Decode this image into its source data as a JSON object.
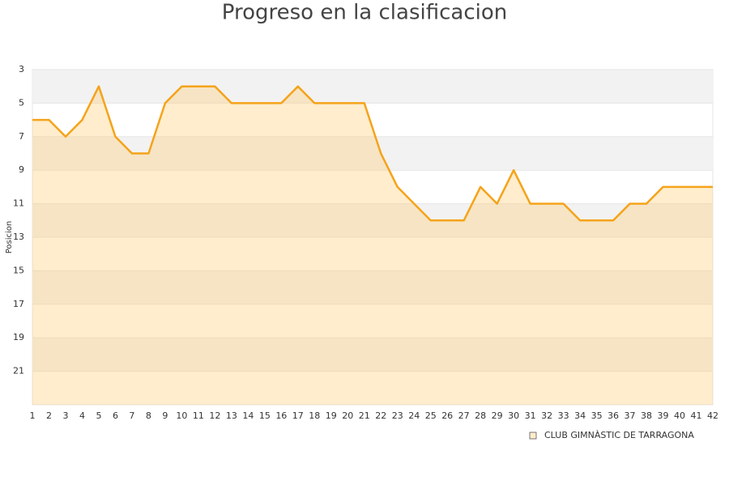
{
  "chart_data": {
    "type": "area",
    "title": "Progreso en la clasificacion",
    "y_label": "Posicion",
    "x": [
      1,
      2,
      3,
      4,
      5,
      6,
      7,
      8,
      9,
      10,
      11,
      12,
      13,
      14,
      15,
      16,
      17,
      18,
      19,
      20,
      21,
      22,
      23,
      24,
      25,
      26,
      27,
      28,
      29,
      30,
      31,
      32,
      33,
      34,
      35,
      36,
      37,
      38,
      39,
      40,
      41,
      42
    ],
    "xlim": [
      1,
      42
    ],
    "series": [
      {
        "name": "CLUB GIMNÀSTIC DE TARRAGONA",
        "color": "#f5a31a",
        "values": [
          6,
          6,
          7,
          6,
          4,
          7,
          8,
          8,
          5,
          4,
          4,
          4,
          5,
          5,
          5,
          5,
          4,
          5,
          5,
          5,
          5,
          8,
          10,
          11,
          12,
          12,
          12,
          10,
          11,
          9,
          11,
          11,
          11,
          12,
          12,
          12,
          11,
          11,
          10,
          10,
          10,
          10
        ]
      }
    ],
    "ylim": [
      23,
      3
    ],
    "yticks": [
      3,
      5,
      7,
      9,
      11,
      13,
      15,
      17,
      19,
      21
    ],
    "grid": true,
    "legend": "bottom-right"
  }
}
